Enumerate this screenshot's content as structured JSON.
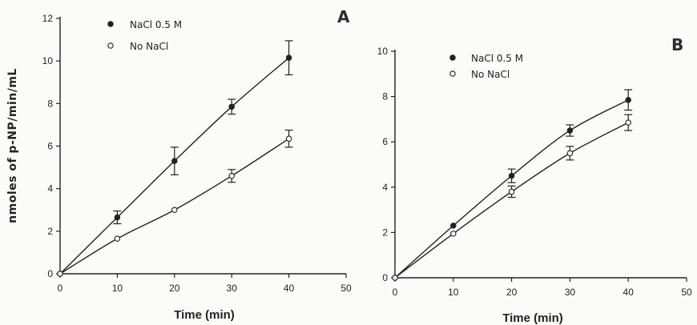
{
  "chart_data": [
    {
      "type": "line",
      "panel": "A",
      "ylabel": "nmoles of p-NP/min/mL",
      "xlabel": "Time (min)",
      "xlim": [
        0,
        50
      ],
      "ylim": [
        0,
        12
      ],
      "x_ticks": [
        "0",
        "10",
        "20",
        "30",
        "40",
        "50"
      ],
      "y_ticks": [
        "0",
        "2",
        "4",
        "6",
        "8",
        "10",
        "12"
      ],
      "legend_placement": "top-left",
      "x": [
        0,
        10,
        20,
        30,
        40
      ],
      "series": [
        {
          "name": "NaCl  0.5 M",
          "marker": "filled-circle",
          "values": [
            0,
            2.65,
            5.3,
            7.85,
            10.15
          ],
          "errors": [
            0,
            0.3,
            0.65,
            0.35,
            0.8
          ]
        },
        {
          "name": "No  NaCl",
          "marker": "open-circle",
          "values": [
            0,
            1.65,
            3.0,
            4.6,
            6.35
          ],
          "errors": [
            0,
            0,
            0,
            0.3,
            0.4
          ]
        }
      ]
    },
    {
      "type": "line",
      "panel": "B",
      "xlabel": "Time (min)",
      "xlim": [
        0,
        50
      ],
      "ylim": [
        0,
        10
      ],
      "x_ticks": [
        "0",
        "10",
        "20",
        "30",
        "40",
        "50"
      ],
      "y_ticks": [
        "0",
        "2",
        "4",
        "6",
        "8",
        "10"
      ],
      "legend_placement": "top-left",
      "x": [
        0,
        10,
        20,
        30,
        40
      ],
      "series": [
        {
          "name": "NaCl  0.5 M",
          "marker": "filled-circle",
          "values": [
            0,
            2.3,
            4.5,
            6.5,
            7.85
          ],
          "errors": [
            0,
            0,
            0.3,
            0.25,
            0.45
          ]
        },
        {
          "name": "No  NaCl",
          "marker": "open-circle",
          "values": [
            0,
            1.95,
            3.8,
            5.5,
            6.85
          ],
          "errors": [
            0,
            0,
            0.25,
            0.3,
            0.35
          ]
        }
      ]
    }
  ]
}
